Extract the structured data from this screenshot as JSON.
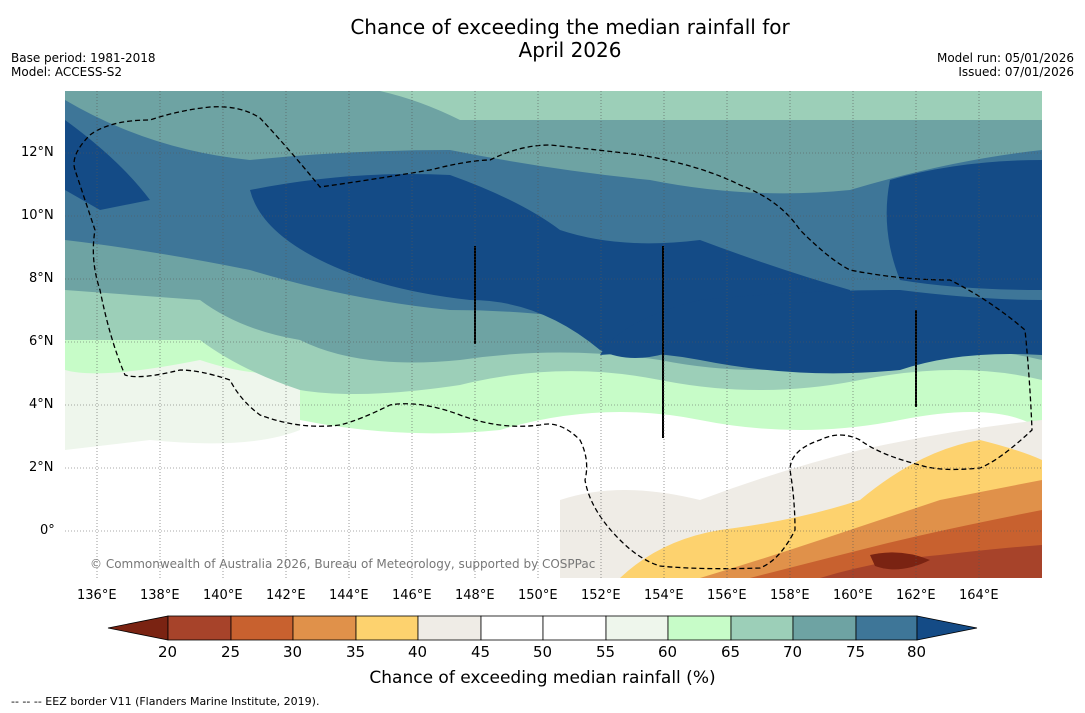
{
  "title_line1": "Chance of exceeding the median rainfall for",
  "title_line2": "April 2026",
  "base_period": "Base period: 1981-2018",
  "model": "Model: ACCESS-S2",
  "model_run": "Model run: 05/01/2026",
  "issued": "Issued: 07/01/2026",
  "copyright": "© Commonwealth of Australia 2026, Bureau of Meteorology, supported by COSPPac",
  "footer": "--  --  -- EEZ border V11 (Flanders Marine Institute, 2019).",
  "colorbar_title": "Chance of exceeding median rainfall (%)",
  "x_ticks": [
    "136°E",
    "138°E",
    "140°E",
    "142°E",
    "144°E",
    "146°E",
    "148°E",
    "150°E",
    "152°E",
    "154°E",
    "156°E",
    "158°E",
    "160°E",
    "162°E",
    "164°E"
  ],
  "y_ticks": [
    "12°N",
    "10°N",
    "8°N",
    "6°N",
    "4°N",
    "2°N",
    "0°"
  ],
  "colorbar": {
    "levels": [
      "20",
      "25",
      "30",
      "35",
      "40",
      "45",
      "50",
      "55",
      "60",
      "65",
      "70",
      "75",
      "80"
    ],
    "colors": [
      "#7a2312",
      "#a7432a",
      "#c8612f",
      "#e0914a",
      "#fdd26e",
      "#efece6",
      "#ffffff",
      "#ffffff",
      "#eef6ec",
      "#c7fcc8",
      "#9ccfb8",
      "#6ea3a3",
      "#3e7698",
      "#144b86"
    ]
  }
}
